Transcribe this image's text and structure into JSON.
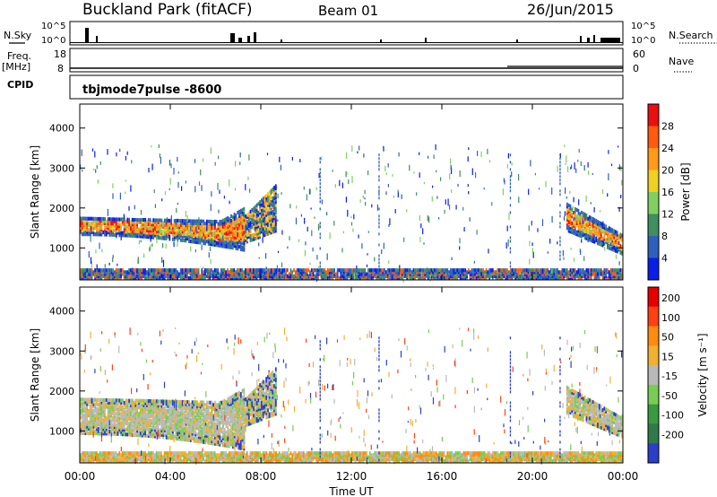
{
  "header": {
    "station": "Buckland Park (fitACF)",
    "beam": "Beam 01",
    "date": "26/Jun/2015"
  },
  "strips": {
    "nsky_label": "N.Sky",
    "nsearch_label": "N.Search",
    "noise_ticks_left": [
      "10^5",
      "10^0"
    ],
    "noise_ticks_right": [
      "10^5",
      "10^0"
    ],
    "freq_label": "Freq.",
    "freq_unit": "[MHz]",
    "freq_ticks": [
      "18",
      "8"
    ],
    "nave_label": "Nave",
    "nave_ticks": [
      "60",
      "0"
    ],
    "cpid_label": "CPID",
    "cpid_value": "tbjmode7pulse  -8600"
  },
  "chart_data": [
    {
      "type": "heatmap",
      "panel": "power",
      "ylabel": "Slant Range [km]",
      "xlabel": "",
      "ylim": [
        200,
        4600
      ],
      "yticks": [
        "1000",
        "2000",
        "3000",
        "4000"
      ],
      "colorbar_label": "Power [dB]",
      "colorbar_ticks": [
        "4",
        "8",
        "12",
        "16",
        "20",
        "24",
        "28"
      ],
      "colors": [
        "#0a1ee6",
        "#2e5fbf",
        "#3f8f5f",
        "#7fd060",
        "#f0d020",
        "#ff9a1a",
        "#ff5a10",
        "#e81010"
      ],
      "echo_regions": [
        {
          "t0": 0.0,
          "t1": 7.3,
          "r0": 1300,
          "r1": 1750,
          "level": "high"
        },
        {
          "t0": 7.3,
          "t1": 8.7,
          "r0": 1200,
          "r1": 2500,
          "level": "mixed"
        },
        {
          "t0": 21.5,
          "t1": 24.0,
          "r0": 800,
          "r1": 2100,
          "level": "high"
        },
        {
          "t0": 0.0,
          "t1": 24.0,
          "r0": 200,
          "r1": 450,
          "level": "low"
        }
      ]
    },
    {
      "type": "heatmap",
      "panel": "velocity",
      "ylabel": "Slant Range [km]",
      "xlabel": "Time UT",
      "ylim": [
        200,
        4600
      ],
      "yticks": [
        "1000",
        "2000",
        "3000",
        "4000"
      ],
      "xticks": [
        "00:00",
        "04:00",
        "08:00",
        "12:00",
        "16:00",
        "20:00",
        "00:00"
      ],
      "colorbar_label": "Velocity [m s⁻¹]",
      "colorbar_ticks": [
        "200",
        "100",
        "50",
        "15",
        "-15",
        "-50",
        "-100",
        "-200"
      ],
      "colors": [
        "#2a3fc8",
        "#2f7a4a",
        "#3a9a40",
        "#77cc55",
        "#b9b9b9",
        "#f0b030",
        "#ff8a10",
        "#ff4010",
        "#e60000"
      ],
      "echo_regions": [
        {
          "t0": 0.0,
          "t1": 7.3,
          "r0": 900,
          "r1": 1800,
          "level": "ground"
        },
        {
          "t0": 7.3,
          "t1": 8.7,
          "r0": 1200,
          "r1": 2500,
          "level": "mixed"
        },
        {
          "t0": 21.5,
          "t1": 24.0,
          "r0": 800,
          "r1": 2100,
          "level": "ground"
        },
        {
          "t0": 0.0,
          "t1": 24.0,
          "r0": 200,
          "r1": 450,
          "level": "low"
        }
      ]
    }
  ]
}
